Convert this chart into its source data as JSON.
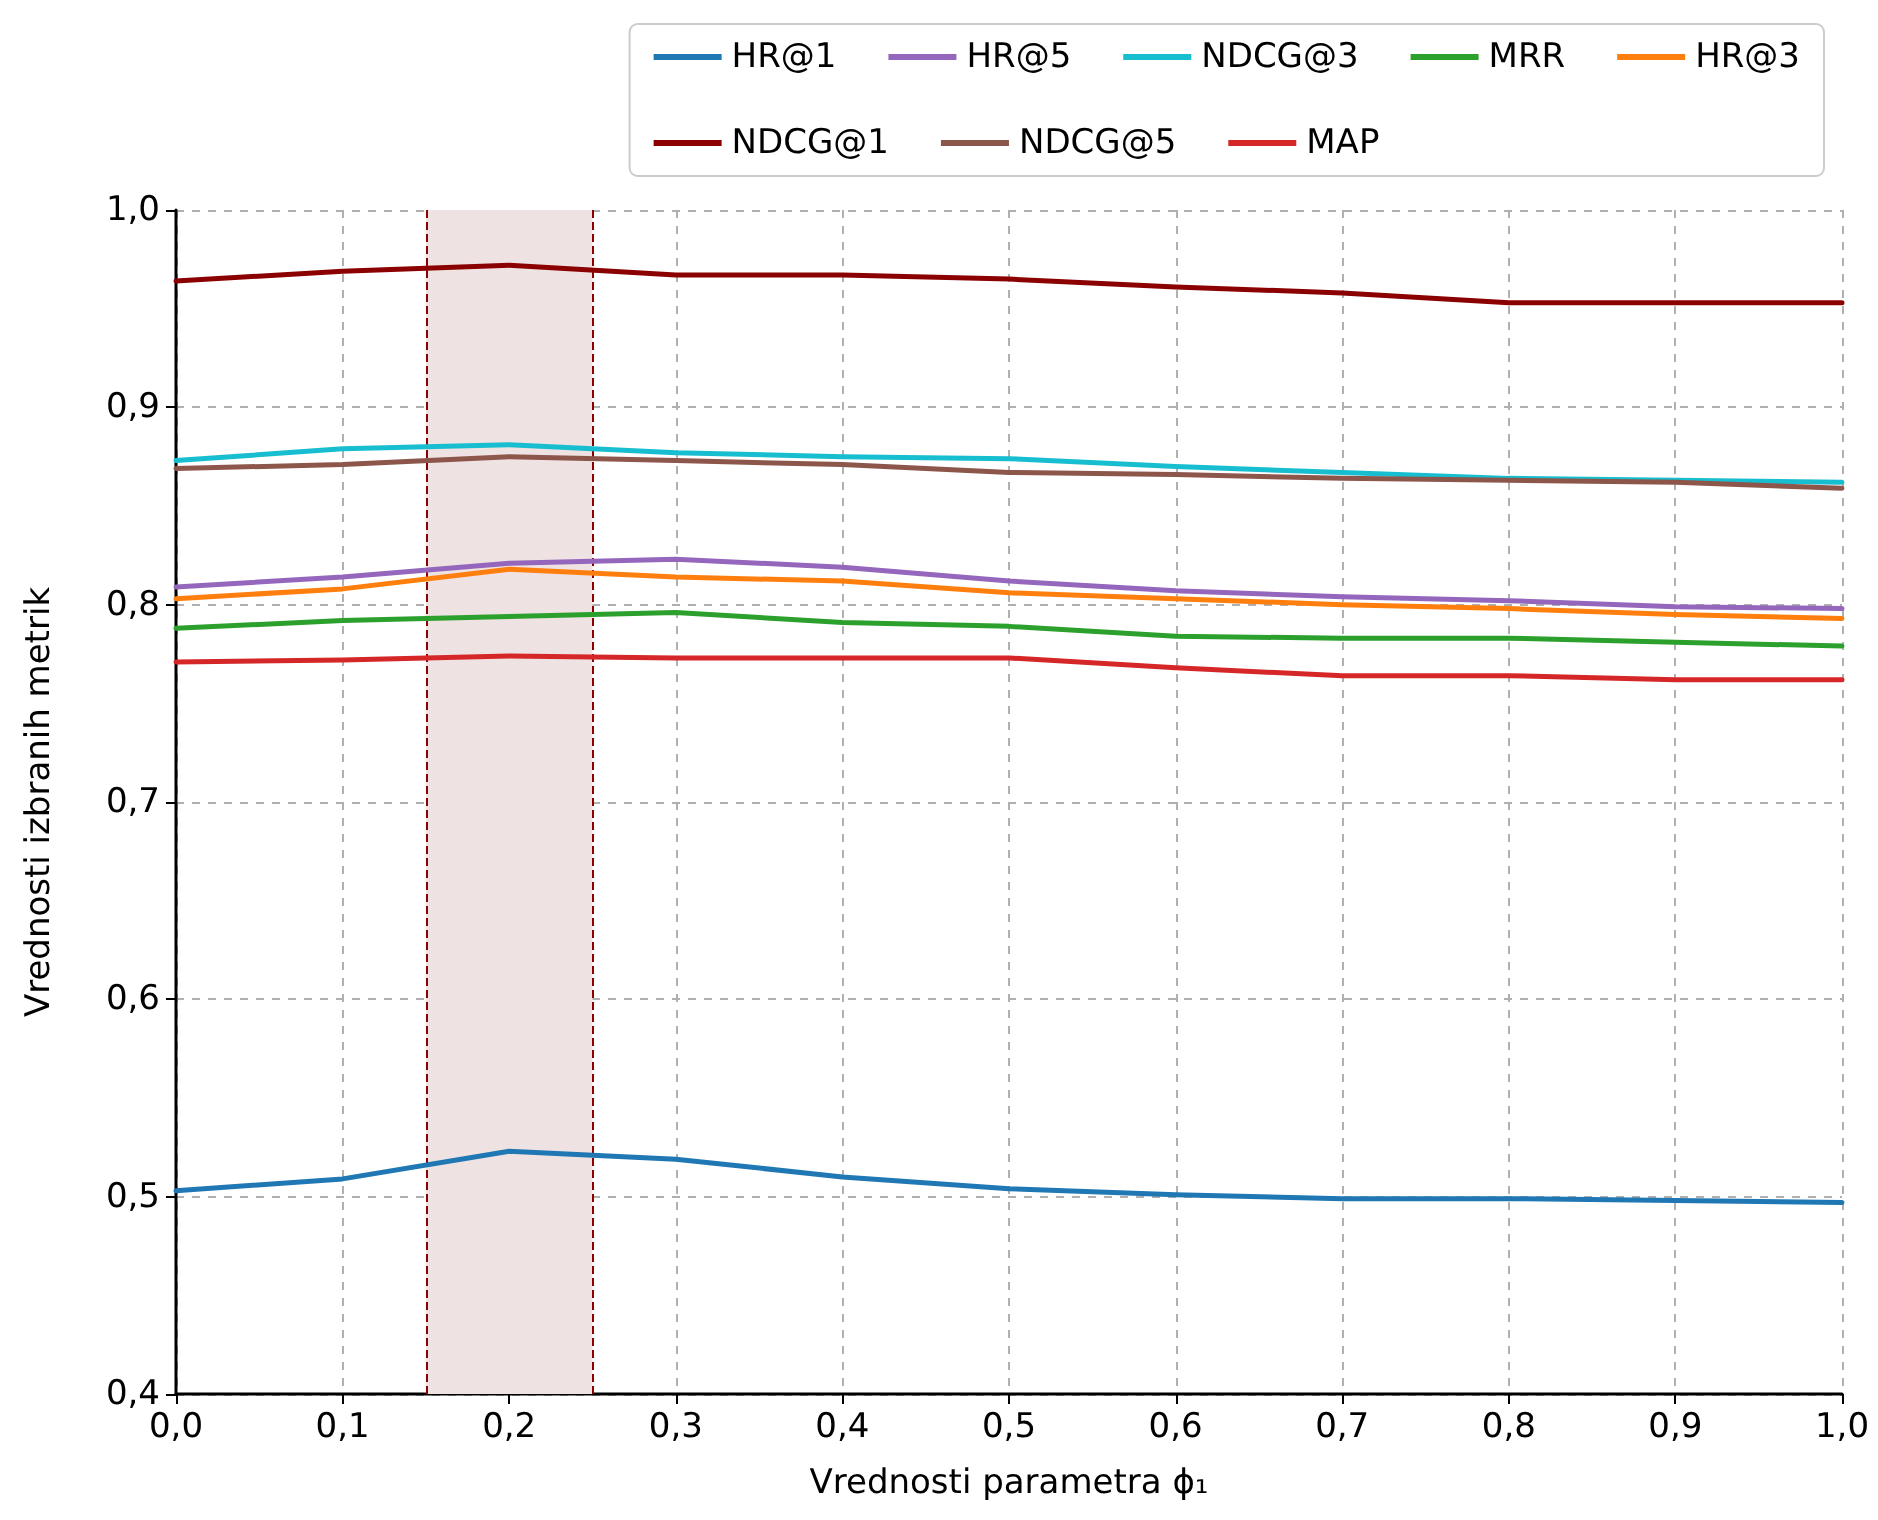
{
  "chart_data": {
    "type": "line",
    "xlabel": "Vrednosti parametra ϕ₁",
    "ylabel": "Vrednosti izbranih metrik",
    "x": [
      0,
      0.1,
      0.2,
      0.3,
      0.4,
      0.5,
      0.6,
      0.7,
      0.8,
      0.9,
      1.0
    ],
    "series": [
      {
        "name": "HR@1",
        "color": "#1f77b4",
        "values": [
          0.503,
          0.509,
          0.523,
          0.519,
          0.51,
          0.504,
          0.501,
          0.499,
          0.499,
          0.498,
          0.497
        ]
      },
      {
        "name": "HR@3",
        "color": "#ff7f0e",
        "values": [
          0.803,
          0.808,
          0.818,
          0.814,
          0.812,
          0.806,
          0.803,
          0.8,
          0.798,
          0.795,
          0.793
        ]
      },
      {
        "name": "HR@5",
        "color": "#9467bd",
        "values": [
          0.809,
          0.814,
          0.821,
          0.823,
          0.819,
          0.812,
          0.807,
          0.804,
          0.802,
          0.799,
          0.798
        ]
      },
      {
        "name": "NDCG@1",
        "color": "#8b0000",
        "values": [
          0.964,
          0.969,
          0.972,
          0.967,
          0.967,
          0.965,
          0.961,
          0.958,
          0.953,
          0.953,
          0.953
        ]
      },
      {
        "name": "NDCG@3",
        "color": "#17becf",
        "values": [
          0.873,
          0.879,
          0.881,
          0.877,
          0.875,
          0.874,
          0.87,
          0.867,
          0.864,
          0.863,
          0.862
        ]
      },
      {
        "name": "NDCG@5",
        "color": "#8c564b",
        "values": [
          0.869,
          0.871,
          0.875,
          0.873,
          0.871,
          0.867,
          0.866,
          0.864,
          0.863,
          0.862,
          0.859
        ]
      },
      {
        "name": "MRR",
        "color": "#2ca02c",
        "values": [
          0.788,
          0.792,
          0.794,
          0.796,
          0.791,
          0.789,
          0.784,
          0.783,
          0.783,
          0.781,
          0.779
        ]
      },
      {
        "name": "MAP",
        "color": "#d62728",
        "values": [
          0.771,
          0.772,
          0.774,
          0.773,
          0.773,
          0.773,
          0.768,
          0.764,
          0.764,
          0.762,
          0.762
        ]
      }
    ],
    "xlim": [
      0,
      1.0
    ],
    "xticks": [
      {
        "value": 0,
        "label": "0,0"
      },
      {
        "value": 0.1,
        "label": "0,1"
      },
      {
        "value": 0.2,
        "label": "0,2"
      },
      {
        "value": 0.3,
        "label": "0,3"
      },
      {
        "value": 0.4,
        "label": "0,4"
      },
      {
        "value": 0.5,
        "label": "0,5"
      },
      {
        "value": 0.6,
        "label": "0,6"
      },
      {
        "value": 0.7,
        "label": "0,7"
      },
      {
        "value": 0.8,
        "label": "0,8"
      },
      {
        "value": 0.9,
        "label": "0,9"
      },
      {
        "value": 1.0,
        "label": "1,0"
      }
    ],
    "ylim": [
      0.4,
      1.0
    ],
    "yticks": [
      {
        "value": 0.4,
        "label": "0,4"
      },
      {
        "value": 0.5,
        "label": "0,5"
      },
      {
        "value": 0.6,
        "label": "0,6"
      },
      {
        "value": 0.7,
        "label": "0,7"
      },
      {
        "value": 0.8,
        "label": "0,8"
      },
      {
        "value": 0.9,
        "label": "0,9"
      },
      {
        "value": 1.0,
        "label": "1,0"
      }
    ],
    "bands": [
      {
        "axis": "x",
        "from": 0.15,
        "to": 0.25,
        "color": "#efe2e2"
      }
    ],
    "ref_lines": [
      {
        "axis": "x",
        "value": 0.15,
        "color": "#8b0000",
        "line_style": "dashed"
      },
      {
        "axis": "x",
        "value": 0.25,
        "color": "#8b0000",
        "line_style": "dashed"
      }
    ],
    "grid": true,
    "legend": "top right",
    "marker": "none",
    "line_style": "solid"
  }
}
